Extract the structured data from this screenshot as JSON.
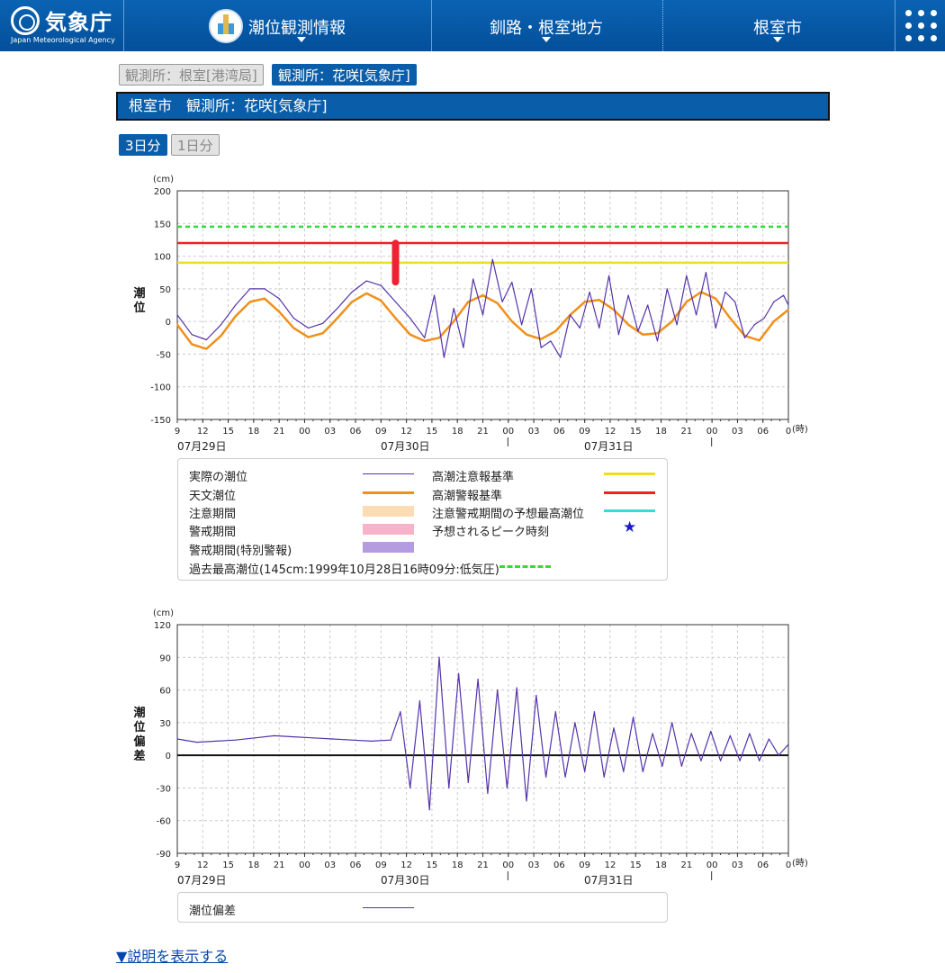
{
  "header": {
    "logo_jp": "気象庁",
    "logo_en": "Japan Meteorological Agency",
    "nav": [
      "潮位観測情報",
      "釧路・根室地方",
      "根室市"
    ]
  },
  "stations": {
    "nemuro": "観測所：根室[港湾局]",
    "hanasaki": "観測所：花咲[気象庁]"
  },
  "title": "根室市　観測所：花咲[気象庁]",
  "range_buttons": {
    "three_days": "3日分",
    "one_day": "1日分"
  },
  "chart_common": {
    "unit": "(cm)",
    "hour_unit": "(時)",
    "x_tick_labels": [
      "9",
      "12",
      "15",
      "18",
      "21",
      "00",
      "03",
      "06",
      "09",
      "12",
      "15",
      "18",
      "21",
      "00",
      "03",
      "06",
      "09",
      "12",
      "15",
      "18",
      "21",
      "00",
      "03",
      "06",
      "0"
    ],
    "dates": [
      "07月29日",
      "07月30日",
      "07月31日"
    ]
  },
  "chart_data": [
    {
      "type": "line",
      "ylabel": "潮位",
      "ylim": [
        -150,
        200
      ],
      "yticks": [
        -150,
        -100,
        -50,
        0,
        50,
        100,
        150,
        200
      ],
      "x_unit": "hours since 07月29日 09時",
      "xlim": [
        0,
        63
      ],
      "reference_lines": [
        {
          "name": "過去最高潮位",
          "value": 145,
          "color": "#33dd33",
          "style": "dashed"
        },
        {
          "name": "高潮警報基準",
          "value": 120,
          "color": "#ee2222",
          "style": "solid"
        },
        {
          "name": "高潮注意報基準",
          "value": 90,
          "color": "#eedd22",
          "style": "solid"
        }
      ],
      "series": [
        {
          "name": "天文潮位",
          "color": "#f0901a",
          "x": [
            0,
            1.5,
            3,
            4.5,
            6,
            7.5,
            9,
            10.5,
            12,
            13.5,
            15,
            16.5,
            18,
            19.5,
            21,
            22.5,
            24,
            25.5,
            27,
            28.5,
            30,
            31.5,
            33,
            34.5,
            36,
            37.5,
            39,
            40.5,
            42,
            43.5,
            45,
            46.5,
            48,
            49.5,
            51,
            52.5,
            54,
            55.5,
            57,
            58.5,
            60,
            61.5,
            63
          ],
          "values": [
            -5,
            -35,
            -42,
            -22,
            8,
            30,
            35,
            15,
            -10,
            -24,
            -18,
            5,
            30,
            43,
            32,
            5,
            -20,
            -30,
            -25,
            0,
            30,
            40,
            28,
            0,
            -20,
            -27,
            -15,
            10,
            30,
            33,
            18,
            -5,
            -20,
            -18,
            0,
            30,
            45,
            35,
            5,
            -22,
            -29,
            0,
            18
          ]
        },
        {
          "name": "実際の潮位",
          "color": "#5533aa",
          "x": [
            0,
            1.5,
            3,
            4.5,
            6,
            7.5,
            9,
            10.5,
            12,
            13.5,
            15,
            16.5,
            18,
            19.5,
            21,
            22.5,
            24,
            25.5,
            26.5,
            27.5,
            28.5,
            29.5,
            30.5,
            31.5,
            32.5,
            33.5,
            34.5,
            35.5,
            36.5,
            37.5,
            38.5,
            39.5,
            40.5,
            41.5,
            42.5,
            43.5,
            44.5,
            45.5,
            46.5,
            47.5,
            48.5,
            49.5,
            50.5,
            51.5,
            52.5,
            53.5,
            54.5,
            55.5,
            56.5,
            57.5,
            58.5,
            59.5,
            60.5,
            61.5,
            62.5,
            63
          ],
          "values": [
            10,
            -20,
            -28,
            -5,
            25,
            50,
            50,
            35,
            5,
            -10,
            -3,
            20,
            45,
            62,
            55,
            30,
            5,
            -25,
            40,
            -55,
            20,
            -40,
            65,
            10,
            95,
            30,
            60,
            -5,
            50,
            -40,
            -30,
            -55,
            10,
            -10,
            45,
            -10,
            70,
            -20,
            40,
            -15,
            25,
            -30,
            50,
            -5,
            70,
            10,
            75,
            -10,
            45,
            30,
            -25,
            -5,
            5,
            30,
            40,
            25
          ]
        }
      ],
      "annotations": [
        {
          "name": "予想されるピーク時刻",
          "x": 22.5,
          "from": 55,
          "to": 125,
          "color": "#ee2233"
        }
      ]
    },
    {
      "type": "line",
      "ylabel": "潮位偏差",
      "ylim": [
        -90,
        120
      ],
      "yticks": [
        -90,
        -60,
        -30,
        0,
        30,
        60,
        90,
        120
      ],
      "x_unit": "hours since 07月29日 09時",
      "xlim": [
        0,
        63
      ],
      "series": [
        {
          "name": "潮位偏差",
          "color": "#5533aa",
          "x": [
            0,
            2,
            4,
            6,
            8,
            10,
            12,
            14,
            16,
            18,
            20,
            22,
            23,
            24,
            25,
            26,
            27,
            28,
            29,
            30,
            31,
            32,
            33,
            34,
            35,
            36,
            37,
            38,
            39,
            40,
            41,
            42,
            43,
            44,
            45,
            46,
            47,
            48,
            49,
            50,
            51,
            52,
            53,
            54,
            55,
            56,
            57,
            58,
            59,
            60,
            61,
            62,
            63
          ],
          "values": [
            15,
            12,
            13,
            14,
            16,
            18,
            17,
            16,
            15,
            14,
            13,
            14,
            40,
            -30,
            50,
            -50,
            90,
            -30,
            75,
            -25,
            70,
            -35,
            60,
            -30,
            62,
            -42,
            55,
            -20,
            40,
            -20,
            30,
            -15,
            40,
            -20,
            25,
            -15,
            35,
            -15,
            20,
            -10,
            30,
            -10,
            20,
            -5,
            22,
            -5,
            18,
            -5,
            20,
            -5,
            15,
            0,
            10
          ]
        }
      ]
    }
  ],
  "legend_top": {
    "items": [
      {
        "label": "実際の潮位",
        "kind": "line",
        "color": "#5533aa"
      },
      {
        "label": "天文潮位",
        "kind": "line",
        "color": "#f0901a"
      },
      {
        "label": "注意期間",
        "kind": "box",
        "color": "#fbdcb4"
      },
      {
        "label": "警戒期間",
        "kind": "box",
        "color": "#f7b3c9"
      },
      {
        "label": "警戒期間(特別警報)",
        "kind": "box",
        "color": "#b59be0"
      },
      {
        "label": "過去最高潮位(145cm:1999年10月28日16時09分:低気圧)",
        "kind": "dash",
        "color": "#33dd33"
      },
      {
        "label": "高潮注意報基準",
        "kind": "line",
        "color": "#eedd22"
      },
      {
        "label": "高潮警報基準",
        "kind": "line",
        "color": "#ee2222"
      },
      {
        "label": "注意警戒期間の予想最高潮位",
        "kind": "line",
        "color": "#33dddd"
      },
      {
        "label": "予想されるピーク時刻",
        "kind": "star",
        "color": "#1a1acc"
      }
    ]
  },
  "legend_bottom": {
    "label": "潮位偏差",
    "color": "#5533aa"
  },
  "show_more": "▼説明を表示する"
}
